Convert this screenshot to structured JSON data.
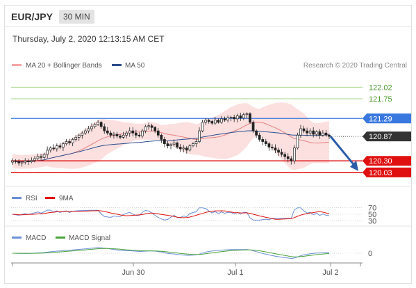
{
  "header": {
    "instrument": "EUR/JPY",
    "timeframe": "30 MIN",
    "timestamp": "Thursday, July 2, 2020 12:13:15 AM CET"
  },
  "legend": {
    "ma20": "MA 20 + Bollinger Bands",
    "ma50": "MA 50",
    "credit": "Research © 2020 Trading Central"
  },
  "colors": {
    "bollinger": "#f7a5a5",
    "ma50": "#2b4c8c",
    "resistance_green": "#a6d48a",
    "level_blue": "#3a78e0",
    "support_red": "#e01010",
    "current_price": "#333333",
    "arrow": "#2a5ca8",
    "rsi": "#6b8fd6",
    "rsi_ma": "#e01010",
    "macd": "#6b8fd6",
    "macd_signal": "#4aa33a"
  },
  "chart_data": [
    {
      "type": "candlestick",
      "name": "price",
      "ylim": [
        119.8,
        122.35
      ],
      "levels": [
        {
          "value": 122.02,
          "label": "122.02",
          "style": "green"
        },
        {
          "value": 121.75,
          "label": "121.75",
          "style": "green"
        },
        {
          "value": 121.29,
          "label": "121.29",
          "style": "blue"
        },
        {
          "value": 120.87,
          "label": "120.87",
          "style": "current"
        },
        {
          "value": 120.3,
          "label": "120.30",
          "style": "red"
        },
        {
          "value": 120.03,
          "label": "120.03",
          "style": "red"
        }
      ],
      "close": [
        120.3,
        120.28,
        120.25,
        120.27,
        120.3,
        120.28,
        120.31,
        120.35,
        120.4,
        120.38,
        120.45,
        120.55,
        120.6,
        120.58,
        120.65,
        120.62,
        120.7,
        120.75,
        120.72,
        120.8,
        120.85,
        120.9,
        120.95,
        121.0,
        121.05,
        121.1,
        121.15,
        121.2,
        121.1,
        121.0,
        120.95,
        120.9,
        120.92,
        120.88,
        120.85,
        120.9,
        120.95,
        121.0,
        120.95,
        120.9,
        120.88,
        121.0,
        121.1,
        121.12,
        121.08,
        121.0,
        120.9,
        120.8,
        120.7,
        120.65,
        120.68,
        120.72,
        120.62,
        120.58,
        120.6,
        120.55,
        120.65,
        120.7,
        120.75,
        121.0,
        121.2,
        121.25,
        121.22,
        121.18,
        121.25,
        121.2,
        121.28,
        121.25,
        121.3,
        121.32,
        121.28,
        121.35,
        121.3,
        121.38,
        121.4,
        121.2,
        121.0,
        120.9,
        120.8,
        120.75,
        120.7,
        120.62,
        120.6,
        120.55,
        120.5,
        120.45,
        120.4,
        120.35,
        120.3,
        120.6,
        120.9,
        121.05,
        121.0,
        120.95,
        121.0,
        120.92,
        120.98,
        120.9,
        120.95,
        120.9,
        120.87
      ],
      "x_ticks": [
        {
          "index": 40,
          "label": "Jun 30"
        },
        {
          "index": 75,
          "label": "Jul 1"
        },
        {
          "index": 107,
          "label": "Jul 2"
        }
      ],
      "projection": {
        "from": 120.87,
        "to": 120.03
      }
    },
    {
      "type": "line",
      "name": "rsi",
      "legend": [
        "RSI",
        "9MA"
      ],
      "ticks": [
        {
          "value": 70,
          "label": "70"
        },
        {
          "value": 50,
          "label": "50"
        },
        {
          "value": 30,
          "label": "30"
        }
      ]
    },
    {
      "type": "line",
      "name": "macd",
      "legend": [
        "MACD",
        "MACD Signal"
      ],
      "ticks": [
        {
          "value": 0,
          "label": "0"
        }
      ]
    }
  ]
}
